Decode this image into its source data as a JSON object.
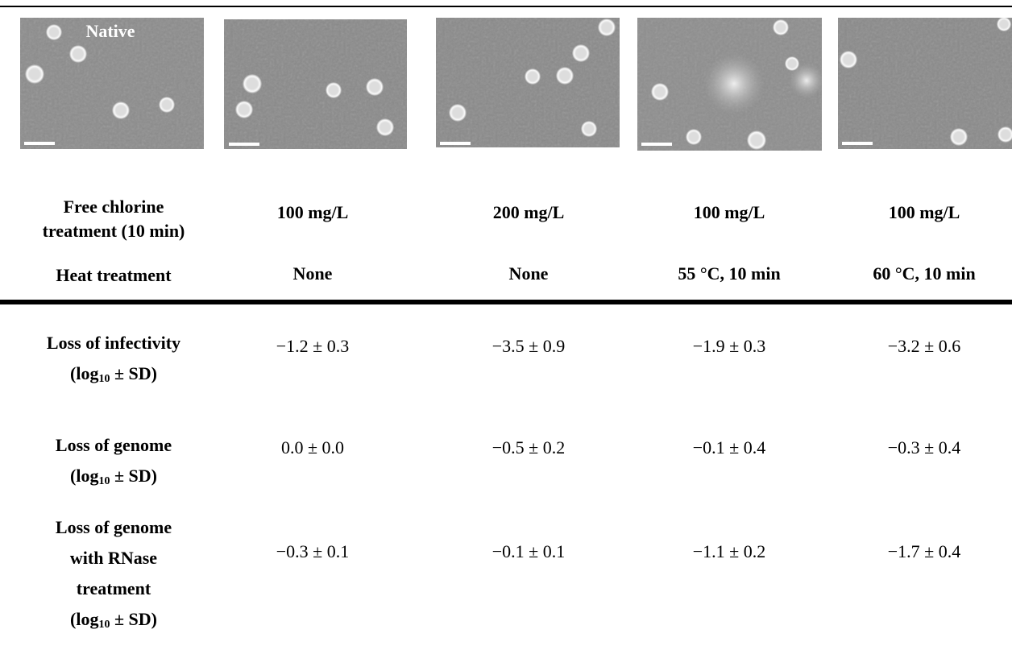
{
  "image_label": "Native",
  "header": {
    "chlorine_label_lines": [
      "Free chlorine",
      "treatment (10 min)"
    ],
    "heat_label": "Heat treatment",
    "chlorine": [
      "100 mg/L",
      "200 mg/L",
      "100 mg/L",
      "100 mg/L"
    ],
    "heat": [
      "None",
      "None",
      "55 °C, 10 min",
      "60 °C, 10 min"
    ]
  },
  "rows": [
    {
      "label_lines": [
        "Loss of infectivity"
      ],
      "unit_base": "(log",
      "unit_sub": "10",
      "unit_rest": " ± SD)",
      "values": [
        "−1.2 ± 0.3",
        "−3.5 ± 0.9",
        "−1.9 ± 0.3",
        "−3.2 ± 0.6"
      ]
    },
    {
      "label_lines": [
        "Loss of genome"
      ],
      "unit_base": "(log",
      "unit_sub": "10",
      "unit_rest": " ± SD)",
      "values": [
        "0.0 ± 0.0",
        "−0.5 ± 0.2",
        "−0.1 ± 0.4",
        "−0.3 ± 0.4"
      ]
    },
    {
      "label_lines": [
        "Loss of genome",
        "with RNase",
        "treatment"
      ],
      "unit_base": "(log",
      "unit_sub": "10",
      "unit_rest": " ± SD)",
      "values": [
        "−0.3 ± 0.1",
        "−0.1 ± 0.1",
        "−1.1 ± 0.2",
        "−1.7 ± 0.4"
      ]
    }
  ]
}
